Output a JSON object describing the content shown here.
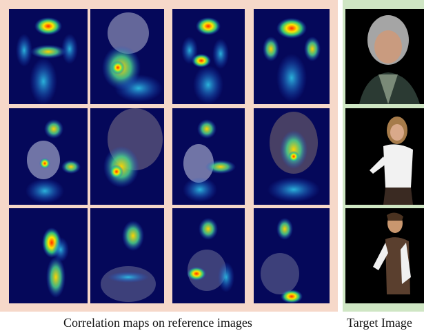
{
  "captions": {
    "reference": "Correlation maps on reference images",
    "target": "Target Image"
  },
  "colors": {
    "reference_frame": "#f6d8c9",
    "target_frame": "#cfe6c4",
    "heatmap_background": "#05085a",
    "target_background": "#000000"
  },
  "grid": {
    "rows": 3,
    "reference_columns": 4,
    "target_columns": 1
  }
}
